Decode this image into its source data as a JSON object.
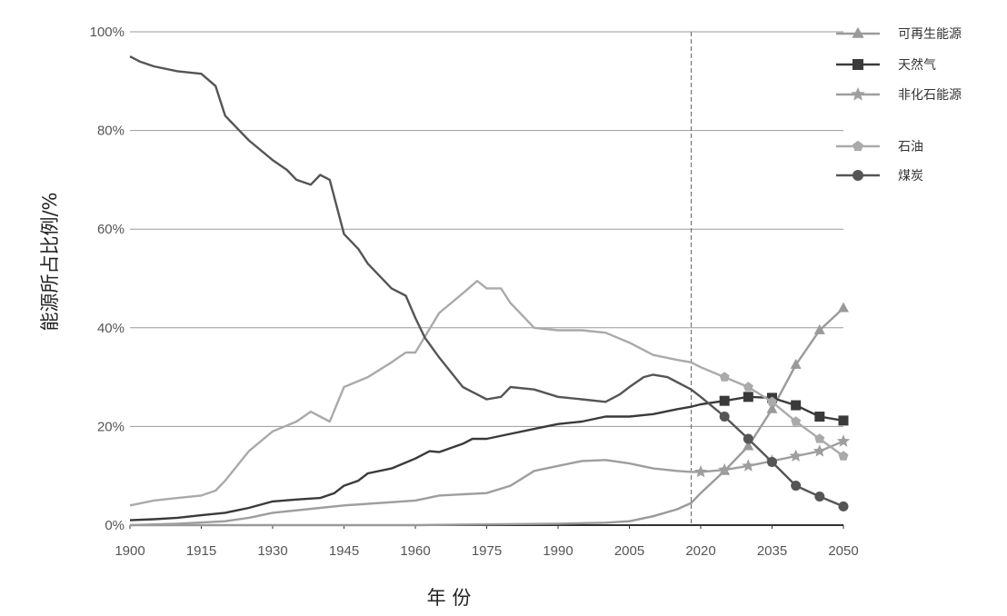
{
  "chart_data": {
    "type": "line",
    "title": "",
    "xlabel": "年 份",
    "ylabel": "能源所占比例/%",
    "xlim": [
      1900,
      2050
    ],
    "ylim": [
      0,
      100
    ],
    "x_ticks": [
      1900,
      1915,
      1930,
      1945,
      1960,
      1975,
      1990,
      2005,
      2020,
      2035,
      2050
    ],
    "y_ticks": [
      0,
      20,
      40,
      60,
      80,
      100
    ],
    "y_tick_labels": [
      "0%",
      "20%",
      "40%",
      "60%",
      "80%",
      "100%"
    ],
    "reference_line_x": 2018,
    "grid": "horizontal",
    "legend_position": "top-right",
    "colors": {
      "renewable": "#9a9a9a",
      "natural_gas": "#3a3a3a",
      "non_fossil": "#9e9e9e",
      "oil": "#aaaaaa",
      "coal": "#555555",
      "grid": "#9a9a9a",
      "axis": "#333333"
    },
    "series": [
      {
        "name": "可再生能源",
        "key": "renewable",
        "marker": "triangle",
        "x": [
          1900,
          1960,
          1990,
          2000,
          2005,
          2010,
          2015,
          2018,
          2020,
          2025,
          2030,
          2035,
          2040,
          2045,
          2050
        ],
        "values": [
          0,
          0,
          0.3,
          0.5,
          0.8,
          1.8,
          3.2,
          4.5,
          6.5,
          11,
          16,
          23.5,
          32.5,
          39.5,
          44
        ],
        "marker_x": [
          2025,
          2030,
          2035,
          2040,
          2045,
          2050
        ]
      },
      {
        "name": "天然气",
        "key": "natural_gas",
        "marker": "square",
        "x": [
          1900,
          1905,
          1910,
          1915,
          1920,
          1925,
          1930,
          1935,
          1940,
          1943,
          1945,
          1948,
          1950,
          1955,
          1960,
          1963,
          1965,
          1970,
          1972,
          1975,
          1980,
          1985,
          1990,
          1995,
          2000,
          2005,
          2010,
          2015,
          2018,
          2020,
          2025,
          2030,
          2035,
          2040,
          2045,
          2050
        ],
        "values": [
          1,
          1.2,
          1.5,
          2,
          2.5,
          3.5,
          4.8,
          5.2,
          5.5,
          6.5,
          8,
          9,
          10.5,
          11.5,
          13.5,
          15,
          14.8,
          16.5,
          17.5,
          17.5,
          18.5,
          19.5,
          20.5,
          21,
          22,
          22,
          22.5,
          23.5,
          24,
          24.5,
          25.2,
          26,
          25.8,
          24.3,
          22,
          21.2
        ],
        "marker_x": [
          2025,
          2030,
          2035,
          2040,
          2045,
          2050
        ]
      },
      {
        "name": "非化石能源",
        "key": "non_fossil",
        "marker": "star",
        "x": [
          1900,
          1910,
          1920,
          1925,
          1930,
          1940,
          1945,
          1960,
          1965,
          1975,
          1980,
          1985,
          1990,
          1995,
          2000,
          2005,
          2010,
          2015,
          2018,
          2020,
          2025,
          2030,
          2035,
          2040,
          2045,
          2050
        ],
        "values": [
          0,
          0.3,
          0.8,
          1.5,
          2.5,
          3.5,
          4,
          5,
          6,
          6.5,
          8,
          11,
          12,
          13,
          13.2,
          12.5,
          11.5,
          11,
          10.8,
          10.8,
          11.2,
          12,
          13,
          14,
          15,
          17
        ],
        "marker_x": [
          2020,
          2025,
          2030,
          2035,
          2040,
          2045,
          2050
        ]
      },
      {
        "name": "石油",
        "key": "oil",
        "marker": "pentagon",
        "x": [
          1900,
          1905,
          1910,
          1915,
          1918,
          1920,
          1925,
          1930,
          1935,
          1938,
          1940,
          1942,
          1945,
          1950,
          1955,
          1958,
          1960,
          1965,
          1970,
          1973,
          1975,
          1978,
          1980,
          1985,
          1990,
          1995,
          2000,
          2005,
          2010,
          2015,
          2018,
          2020,
          2025,
          2030,
          2035,
          2040,
          2045,
          2050
        ],
        "values": [
          4,
          5,
          5.5,
          6,
          7,
          9,
          15,
          19,
          21,
          23,
          22,
          21,
          28,
          30,
          33,
          35,
          35,
          43,
          47,
          49.5,
          48,
          48,
          45,
          40,
          39.5,
          39.5,
          39,
          37,
          34.5,
          33.5,
          33,
          32,
          30,
          28,
          25,
          21,
          17.5,
          14
        ],
        "marker_x": [
          2025,
          2030,
          2035,
          2040,
          2045,
          2050
        ]
      },
      {
        "name": "煤炭",
        "key": "coal",
        "marker": "circle",
        "x": [
          1900,
          1902,
          1905,
          1910,
          1915,
          1918,
          1920,
          1922,
          1925,
          1930,
          1933,
          1935,
          1938,
          1940,
          1942,
          1945,
          1948,
          1950,
          1955,
          1958,
          1960,
          1962,
          1965,
          1970,
          1972,
          1975,
          1978,
          1980,
          1985,
          1990,
          1995,
          2000,
          2003,
          2005,
          2008,
          2010,
          2013,
          2015,
          2018,
          2020,
          2025,
          2030,
          2035,
          2040,
          2045,
          2050
        ],
        "values": [
          95,
          94,
          93,
          92,
          91.5,
          89,
          83,
          81,
          78,
          74,
          72,
          70,
          69,
          71,
          70,
          59,
          56,
          53,
          48,
          46.5,
          42,
          38,
          34,
          28,
          27,
          25.5,
          26,
          28,
          27.5,
          26,
          25.5,
          25,
          26.5,
          28,
          30,
          30.5,
          30,
          29,
          27.5,
          26,
          22,
          17.5,
          12.8,
          8,
          5.8,
          3.8
        ],
        "marker_x": [
          2025,
          2030,
          2035,
          2040,
          2045,
          2050
        ]
      }
    ],
    "legend": [
      {
        "name": "可再生能源",
        "key": "renewable",
        "marker": "triangle"
      },
      {
        "name": "天然气",
        "key": "natural_gas",
        "marker": "square"
      },
      {
        "name": "非化石能源",
        "key": "non_fossil",
        "marker": "star"
      },
      {
        "name": "石油",
        "key": "oil",
        "marker": "pentagon"
      },
      {
        "name": "煤炭",
        "key": "coal",
        "marker": "circle"
      }
    ]
  }
}
